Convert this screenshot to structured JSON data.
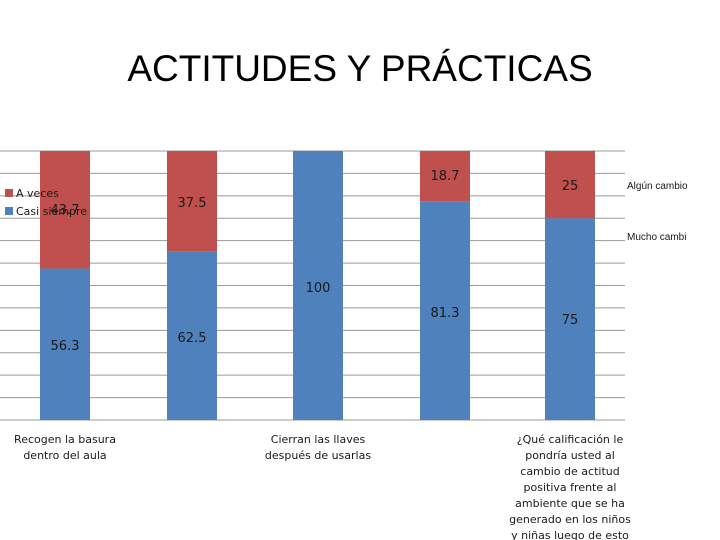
{
  "title": "ACTITUDES Y PRÁCTICAS",
  "colors": {
    "casi_siempre": "#4f81bd",
    "a_veces": "#c0504d",
    "gridline": "#9a9a9a"
  },
  "legend": {
    "items": [
      "A veces",
      "Casi siempre"
    ]
  },
  "side_labels": [
    "Algún cambio",
    "Mucho cambi"
  ],
  "chart_data": {
    "type": "bar",
    "stacked": true,
    "categories": [
      "Recogen la basura dentro del aula",
      "",
      "Cierran las llaves después de usarlas",
      "",
      "¿Qué calificación le pondría usted al cambio de actitud positiva frente al ambiente que se ha generado en los niños y niñas luego de esto"
    ],
    "category_label_lines": [
      [
        "Recogen la basura",
        "dentro del aula"
      ],
      [],
      [
        "Cierran las llaves",
        "después de usarlas"
      ],
      [],
      [
        "¿Qué calificación le",
        "pondría usted al",
        "cambio de actitud",
        "positiva frente al",
        "ambiente que se ha",
        "generado en los niños",
        "y niñas luego de esto"
      ]
    ],
    "series": [
      {
        "name": "Casi siempre",
        "values": [
          56.3,
          62.5,
          100,
          81.3,
          75
        ],
        "labels": [
          "56.3",
          "62.5",
          "100",
          "81.3",
          "75"
        ]
      },
      {
        "name": "A veces",
        "values": [
          43.7,
          37.5,
          0,
          18.7,
          25
        ],
        "labels": [
          "43.7",
          "37.5",
          "",
          "18.7",
          "25"
        ]
      }
    ],
    "ylim": [
      0,
      100
    ],
    "grid": true,
    "legend_position": "left"
  }
}
